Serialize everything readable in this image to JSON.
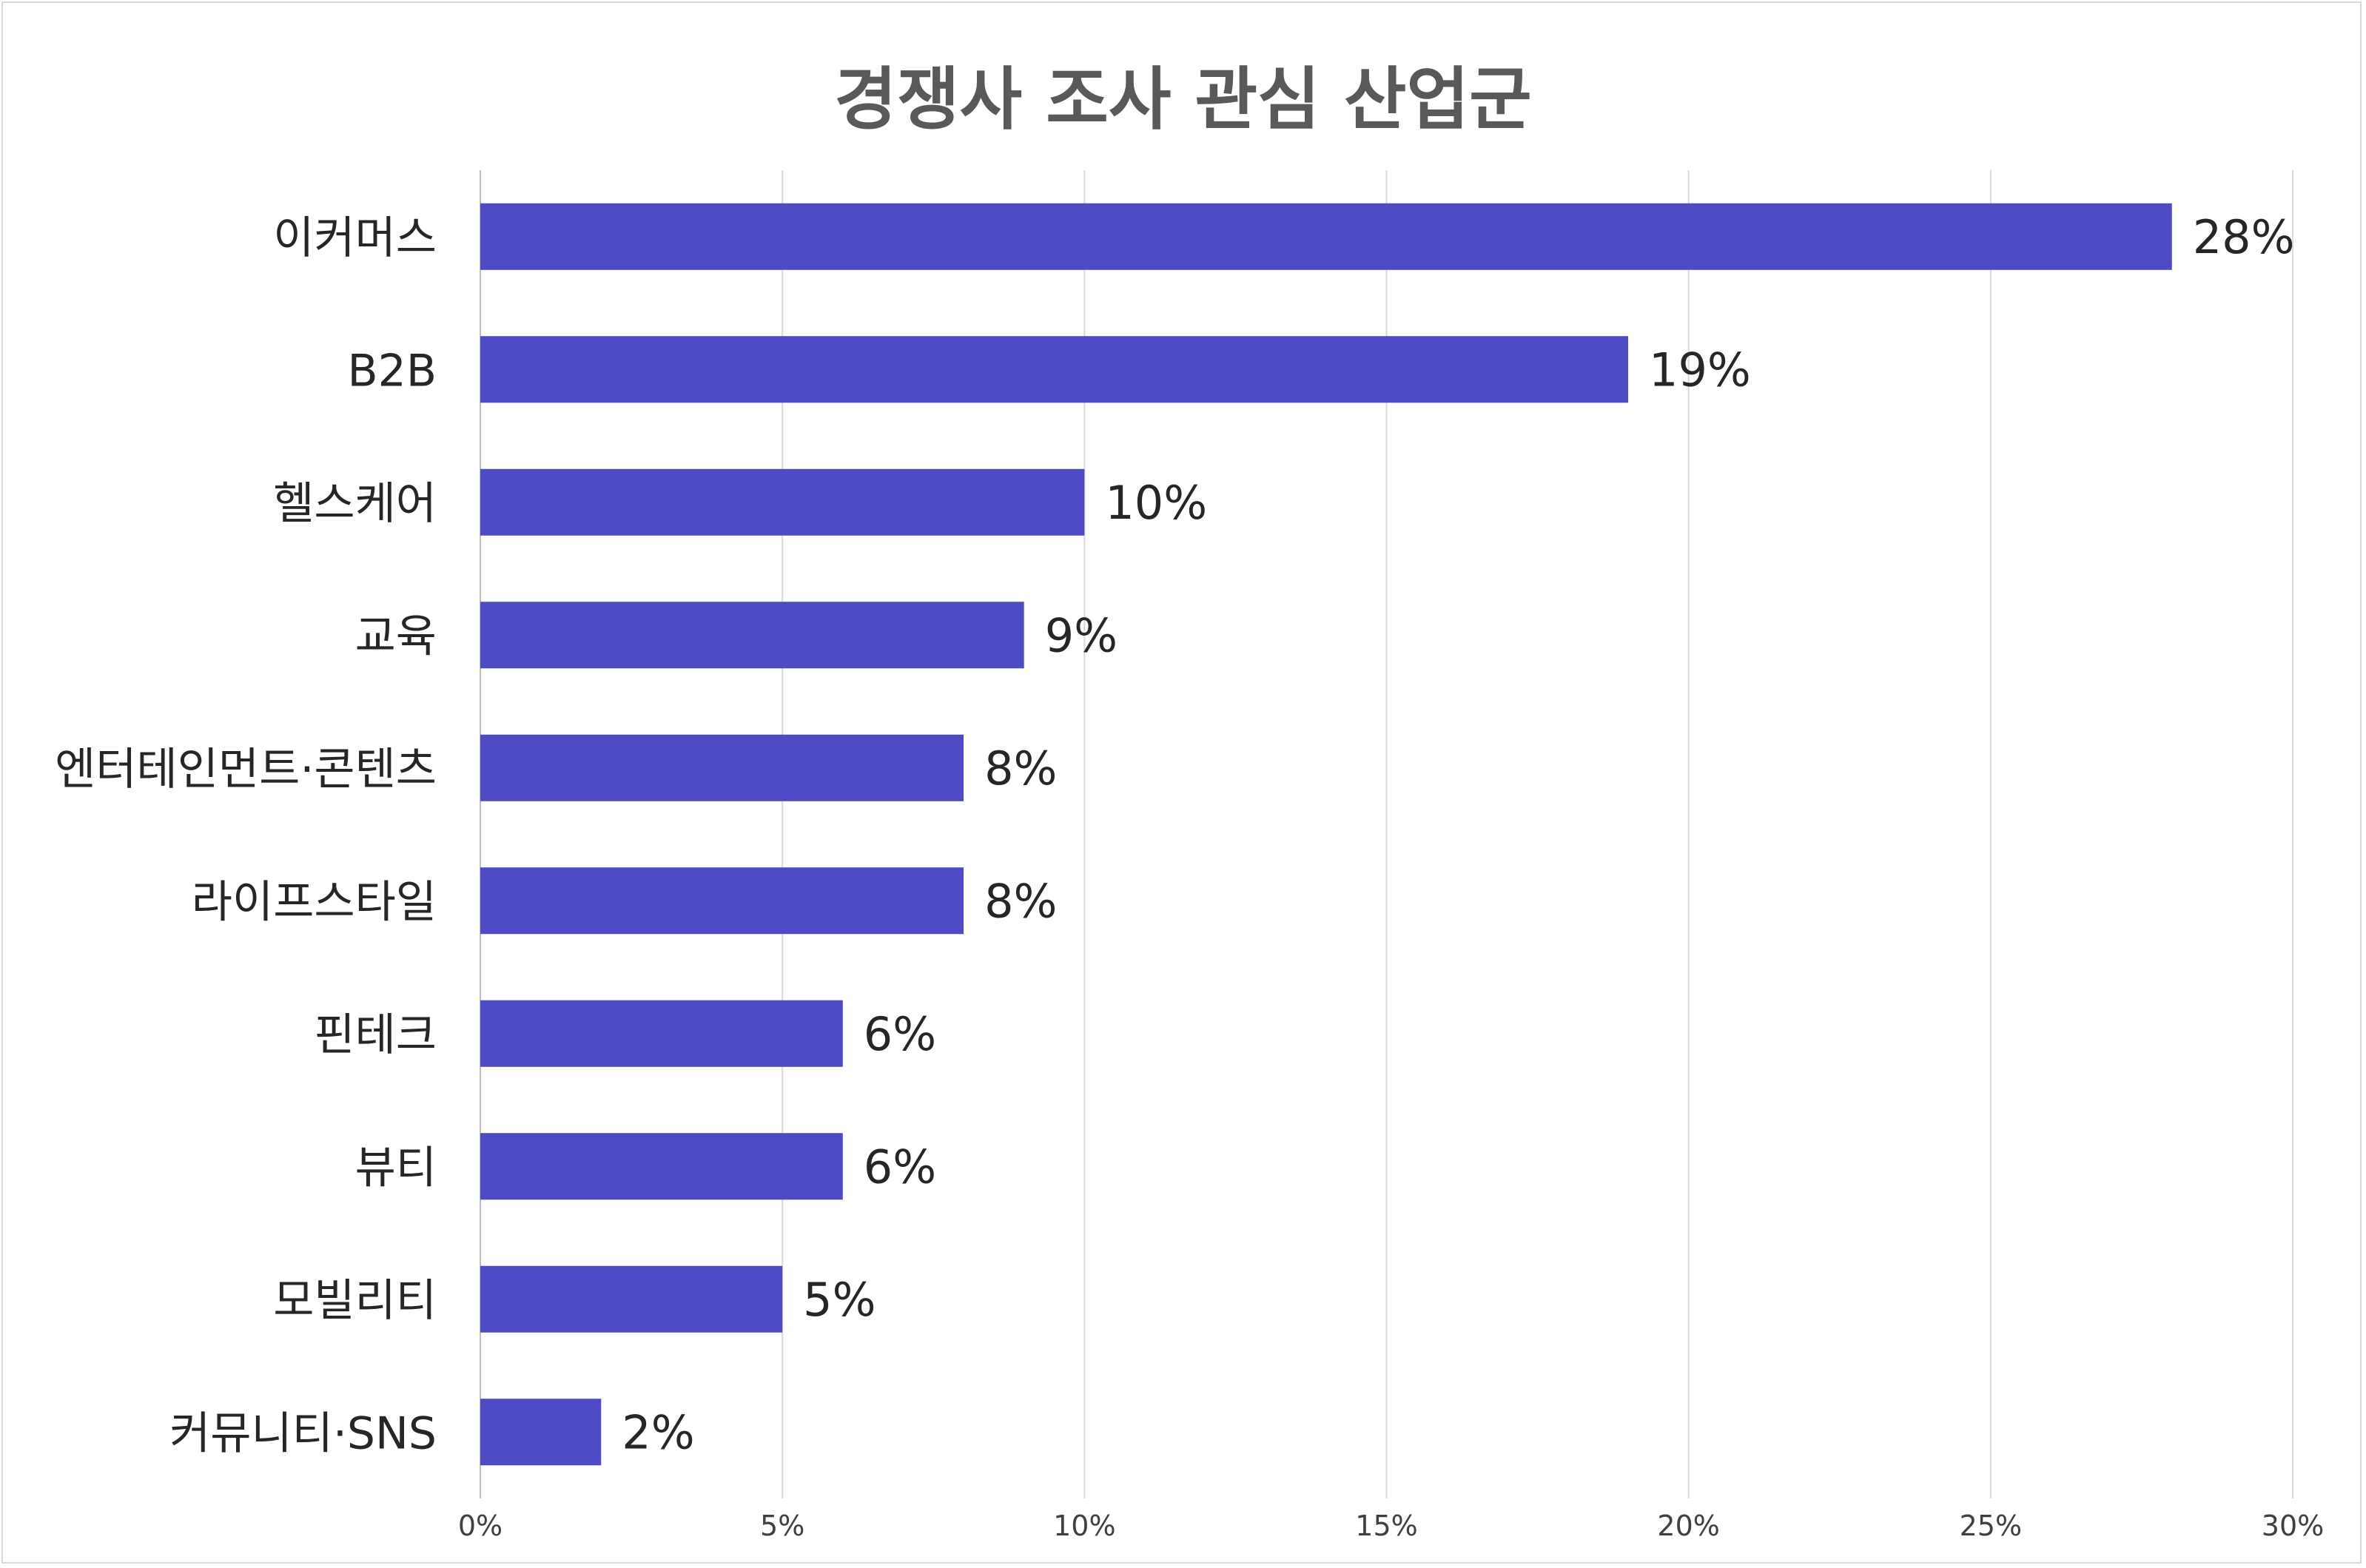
{
  "chart_data": {
    "type": "bar",
    "orientation": "horizontal",
    "title": "경쟁사 조사 관심 산업군",
    "categories": [
      "이커머스",
      "B2B",
      "헬스케어",
      "교육",
      "엔터테인먼트·콘텐츠",
      "라이프스타일",
      "핀테크",
      "뷰티",
      "모빌리티",
      "커뮤니티·SNS"
    ],
    "values": [
      28,
      19,
      10,
      9,
      8,
      8,
      6,
      6,
      5,
      2
    ],
    "data_labels": [
      "28%",
      "19%",
      "10%",
      "9%",
      "8%",
      "8%",
      "6%",
      "6%",
      "5%",
      "2%"
    ],
    "xlim": [
      0,
      30
    ],
    "x_ticks": [
      0,
      5,
      10,
      15,
      20,
      25,
      30
    ],
    "x_tick_labels": [
      "0%",
      "5%",
      "10%",
      "15%",
      "20%",
      "25%",
      "30%"
    ],
    "xlabel": "",
    "ylabel": "",
    "grid": "vertical",
    "legend": "none",
    "bar_color": "#4e4ac4"
  }
}
